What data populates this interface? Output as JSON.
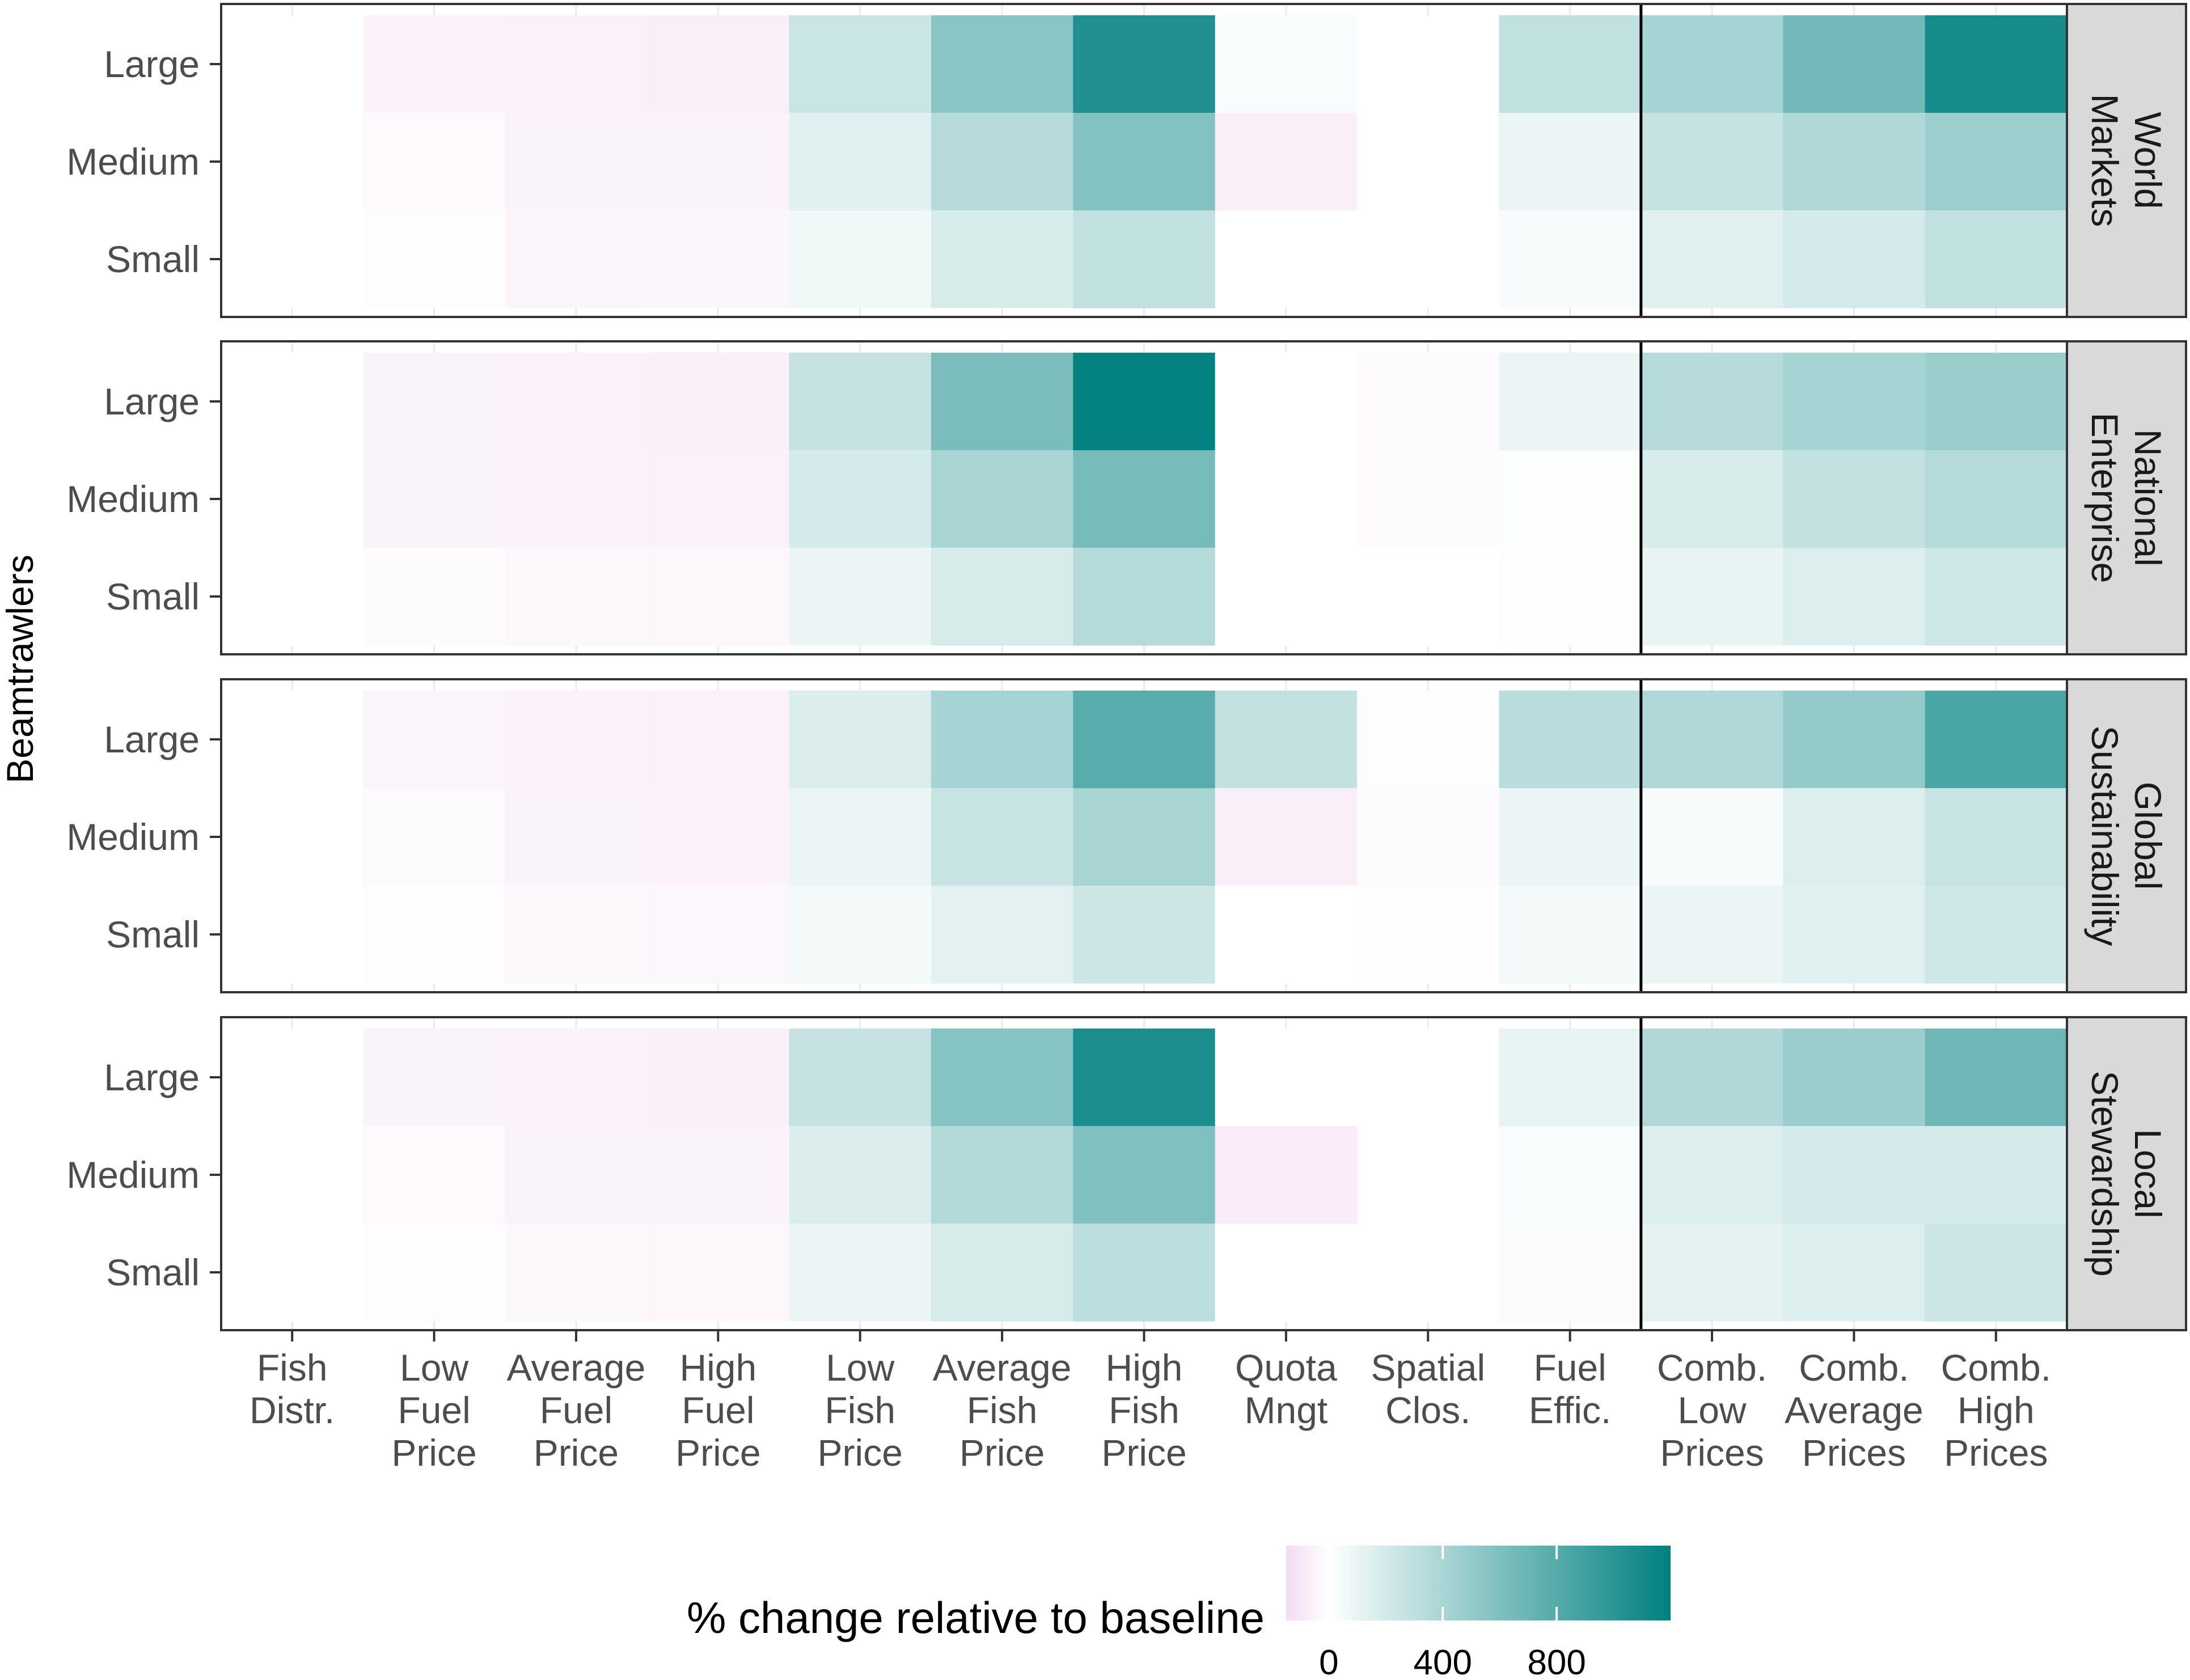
{
  "chart_data": {
    "type": "heatmap",
    "title": "",
    "ylabel": "Beamtrawlers",
    "xlabel": "",
    "x_categories": [
      [
        "Fish",
        "Distr."
      ],
      [
        "Low",
        "Fuel",
        "Price"
      ],
      [
        "Average",
        "Fuel",
        "Price"
      ],
      [
        "High",
        "Fuel",
        "Price"
      ],
      [
        "Low",
        "Fish",
        "Price"
      ],
      [
        "Average",
        "Fish",
        "Price"
      ],
      [
        "High",
        "Fish",
        "Price"
      ],
      [
        "Quota",
        "Mngt"
      ],
      [
        "Spatial",
        "Clos."
      ],
      [
        "Fuel",
        "Effic."
      ],
      [
        "Comb.",
        "Low",
        "Prices"
      ],
      [
        "Comb.",
        "Average",
        "Prices"
      ],
      [
        "Comb.",
        "High",
        "Prices"
      ]
    ],
    "y_categories": [
      "Large",
      "Medium",
      "Small"
    ],
    "panels": [
      {
        "name": [
          "World",
          "Markets"
        ],
        "values": [
          [
            0,
            -55,
            -60,
            -65,
            250,
            550,
            1050,
            30,
            0,
            290,
            420,
            660,
            1100
          ],
          [
            0,
            -25,
            -50,
            -52,
            140,
            340,
            580,
            -70,
            0,
            90,
            270,
            370,
            460
          ],
          [
            0,
            -10,
            -38,
            -40,
            70,
            180,
            290,
            0,
            0,
            40,
            140,
            200,
            290
          ]
        ]
      },
      {
        "name": [
          "National",
          "Enterprise"
        ],
        "values": [
          [
            0,
            -48,
            -58,
            -62,
            270,
            620,
            1180,
            0,
            -15,
            90,
            340,
            420,
            470
          ],
          [
            0,
            -48,
            -55,
            -58,
            200,
            400,
            640,
            0,
            -15,
            15,
            180,
            280,
            350
          ],
          [
            0,
            -18,
            -30,
            -32,
            90,
            190,
            350,
            0,
            0,
            15,
            110,
            160,
            230
          ]
        ]
      },
      {
        "name": [
          "Global",
          "Sustainability"
        ],
        "values": [
          [
            0,
            -45,
            -55,
            -60,
            170,
            420,
            780,
            280,
            -10,
            330,
            370,
            500,
            850
          ],
          [
            0,
            -22,
            -50,
            -55,
            90,
            260,
            410,
            -70,
            -15,
            90,
            40,
            160,
            260
          ],
          [
            0,
            -12,
            -30,
            -35,
            50,
            130,
            240,
            0,
            -5,
            50,
            90,
            140,
            230
          ]
        ]
      },
      {
        "name": [
          "Local",
          "Stewardship"
        ],
        "values": [
          [
            0,
            -50,
            -56,
            -62,
            270,
            570,
            1070,
            0,
            0,
            110,
            370,
            470,
            680
          ],
          [
            0,
            -25,
            -48,
            -52,
            170,
            360,
            600,
            -75,
            0,
            30,
            160,
            200,
            200
          ],
          [
            0,
            -10,
            -30,
            -32,
            90,
            190,
            310,
            0,
            0,
            25,
            120,
            160,
            240
          ]
        ]
      }
    ],
    "legend": {
      "title": "% change relative to baseline",
      "ticks": [
        0,
        400,
        800
      ],
      "range": [
        -150,
        1200
      ],
      "low_color": "#f4dbf2",
      "mid_color": "#ffffff",
      "high_color": "#008080",
      "position": "bottom"
    }
  }
}
